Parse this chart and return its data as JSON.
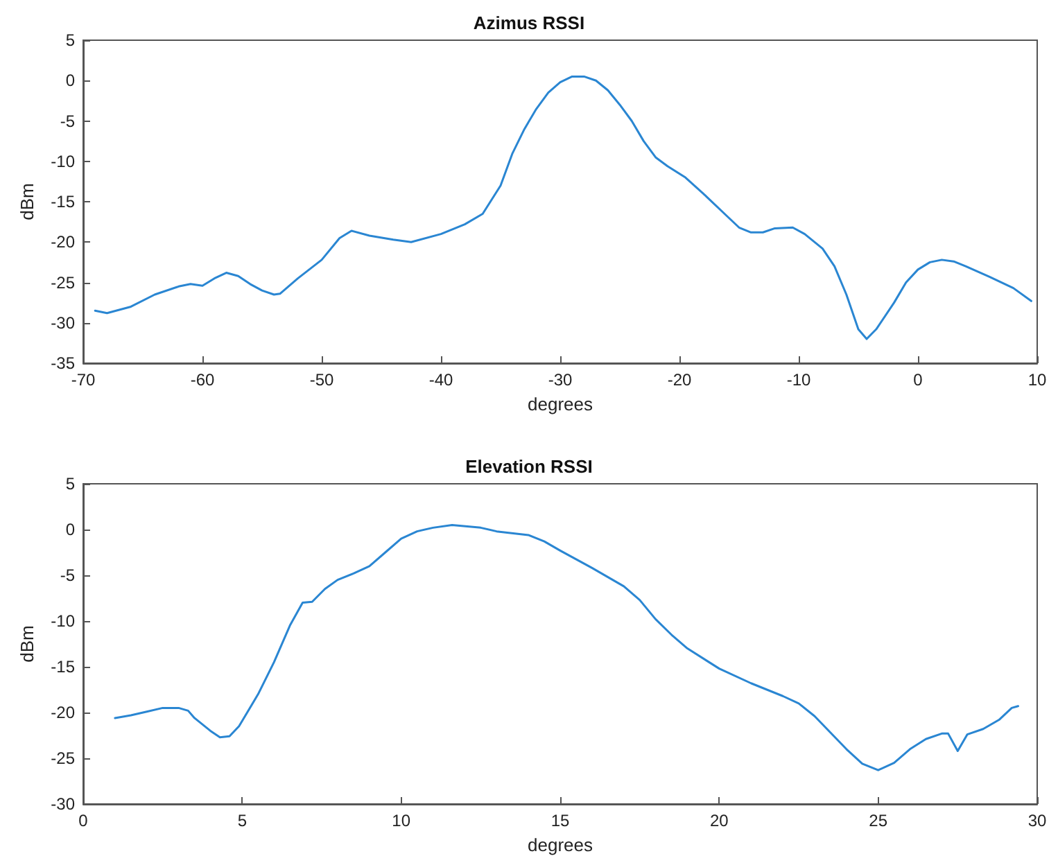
{
  "chart_data": [
    {
      "type": "line",
      "title": "Azimus RSSI",
      "xlabel": "degrees",
      "ylabel": "dBm",
      "xlim": [
        -70,
        10
      ],
      "xticks": [
        -70,
        -60,
        -50,
        -40,
        -30,
        -20,
        -10,
        0,
        10
      ],
      "ylim": [
        -35,
        5
      ],
      "yticks": [
        -35,
        -30,
        -25,
        -20,
        -15,
        -10,
        -5,
        0,
        5
      ],
      "grid": false,
      "marker": "none",
      "line_style": "solid",
      "series": [
        {
          "color": "#2a86d2",
          "x": [
            -69,
            -68,
            -66,
            -64,
            -62,
            -61,
            -60,
            -59,
            -58,
            -57,
            -56,
            -55,
            -54,
            -53.5,
            -52,
            -50,
            -48.5,
            -47.5,
            -46,
            -44,
            -42.5,
            -40,
            -38,
            -36.5,
            -35,
            -34,
            -33,
            -32,
            -31,
            -30,
            -29,
            -28,
            -27,
            -26,
            -25,
            -24,
            -23,
            -22,
            -21,
            -19.5,
            -18,
            -16,
            -15,
            -14,
            -13,
            -12,
            -10.5,
            -9.5,
            -8,
            -7,
            -6,
            -5,
            -4.3,
            -3.5,
            -2,
            -1,
            0,
            1,
            2,
            3,
            4,
            6,
            8,
            9.5
          ],
          "values": [
            -28.5,
            -28.8,
            -28,
            -26.5,
            -25.5,
            -25.2,
            -25.4,
            -24.5,
            -23.8,
            -24.2,
            -25.2,
            -26,
            -26.5,
            -26.4,
            -24.5,
            -22.2,
            -19.5,
            -18.6,
            -19.2,
            -19.7,
            -20,
            -19,
            -17.8,
            -16.5,
            -13,
            -9,
            -6,
            -3.5,
            -1.5,
            -0.2,
            0.5,
            0.5,
            0,
            -1.2,
            -3,
            -5,
            -7.5,
            -9.5,
            -10.6,
            -12,
            -14,
            -16.8,
            -18.2,
            -18.8,
            -18.8,
            -18.3,
            -18.2,
            -19,
            -20.8,
            -23,
            -26.5,
            -30.8,
            -32,
            -30.8,
            -27.5,
            -25,
            -23.4,
            -22.5,
            -22.2,
            -22.4,
            -23,
            -24.3,
            -25.7,
            -27.3
          ]
        }
      ]
    },
    {
      "type": "line",
      "title": "Elevation RSSI",
      "xlabel": "degrees",
      "ylabel": "dBm",
      "xlim": [
        0,
        30
      ],
      "xticks": [
        0,
        5,
        10,
        15,
        20,
        25,
        30
      ],
      "ylim": [
        -30,
        5
      ],
      "yticks": [
        -30,
        -25,
        -20,
        -15,
        -10,
        -5,
        0,
        5
      ],
      "grid": false,
      "marker": "none",
      "line_style": "solid",
      "series": [
        {
          "color": "#2a86d2",
          "x": [
            1,
            1.5,
            2,
            2.5,
            3,
            3.3,
            3.5,
            4,
            4.3,
            4.6,
            4.9,
            5.5,
            6,
            6.5,
            6.9,
            7.2,
            7.6,
            8,
            8.5,
            9,
            9.5,
            10,
            10.5,
            11,
            11.6,
            12.5,
            13,
            14,
            14.5,
            15,
            16,
            17,
            17.5,
            18,
            18.5,
            19,
            20,
            21,
            22,
            22.5,
            23,
            23.5,
            24,
            24.5,
            25,
            25.5,
            26,
            26.5,
            27,
            27.2,
            27.5,
            27.8,
            28.3,
            28.8,
            29.2,
            29.4
          ],
          "values": [
            -20.6,
            -20.3,
            -19.9,
            -19.5,
            -19.5,
            -19.8,
            -20.6,
            -22,
            -22.7,
            -22.6,
            -21.5,
            -18,
            -14.5,
            -10.5,
            -8,
            -7.9,
            -6.5,
            -5.5,
            -4.8,
            -4,
            -2.5,
            -1,
            -0.2,
            0.2,
            0.5,
            0.2,
            -0.2,
            -0.6,
            -1.3,
            -2.3,
            -4.2,
            -6.2,
            -7.7,
            -9.8,
            -11.5,
            -13,
            -15.2,
            -16.8,
            -18.2,
            -19,
            -20.4,
            -22.2,
            -24,
            -25.6,
            -26.3,
            -25.5,
            -24,
            -22.9,
            -22.3,
            -22.3,
            -24.2,
            -22.4,
            -21.8,
            -20.8,
            -19.5,
            -19.3
          ]
        }
      ]
    }
  ]
}
